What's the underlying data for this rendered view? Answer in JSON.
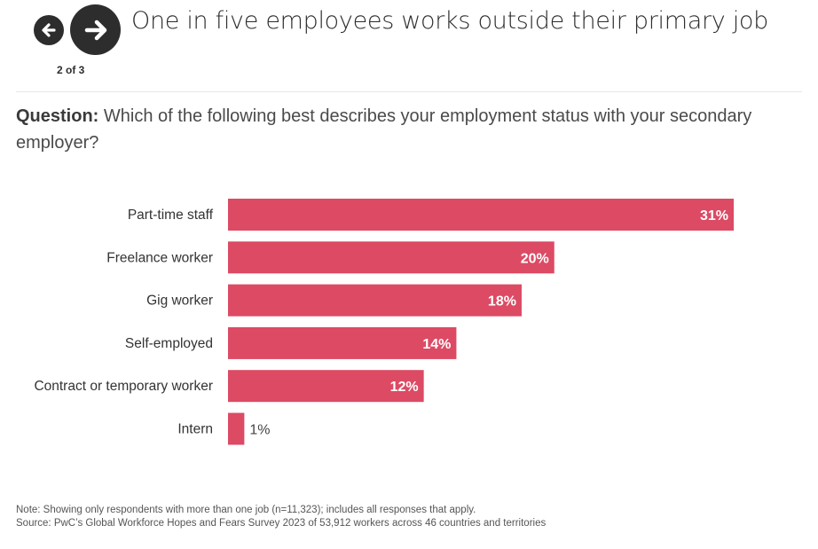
{
  "nav": {
    "prev_icon": "arrow-left-icon",
    "next_icon": "arrow-right-icon",
    "pager": "2 of 3"
  },
  "title": "One in five employees works outside their primary job",
  "question": {
    "label": "Question:",
    "text": " Which of the following best describes your employment status with your secondary employer?"
  },
  "chart_data": {
    "type": "bar",
    "orientation": "horizontal",
    "categories": [
      "Part-time staff",
      "Freelance worker",
      "Gig worker",
      "Self-employed",
      "Contract or temporary worker",
      "Intern"
    ],
    "values": [
      31,
      20,
      18,
      14,
      12,
      1
    ],
    "labels": [
      "31%",
      "20%",
      "18%",
      "14%",
      "12%",
      "1%"
    ],
    "unit": "%",
    "xlim": [
      0,
      31
    ],
    "grid": false,
    "bar_color": "#dc4a64"
  },
  "notes": {
    "note": "Note: Showing only respondents with more than one job (n=11,323); includes all responses that apply.",
    "source": "Source: PwC’s Global Workforce Hopes and Fears Survey 2023 of 53,912 workers across 46 countries and territories"
  }
}
